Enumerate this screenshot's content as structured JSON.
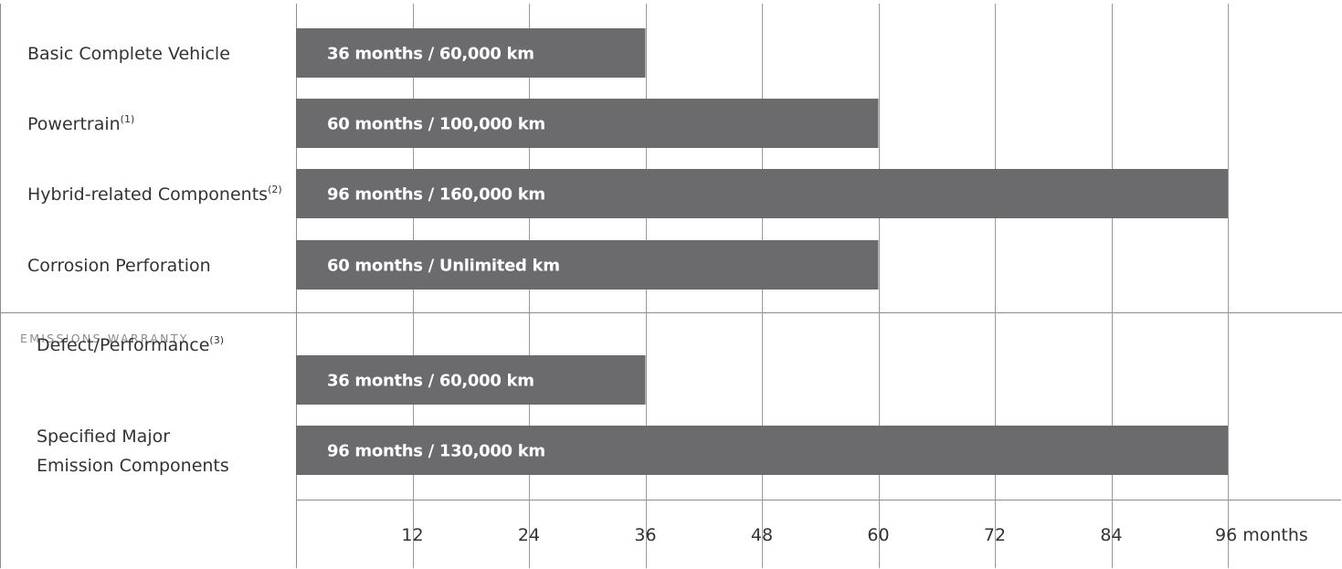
{
  "chart_data": {
    "type": "bar",
    "orientation": "horizontal",
    "x_unit": "months",
    "xlim": [
      0,
      96
    ],
    "x_ticks": [
      12,
      24,
      36,
      48,
      60,
      72,
      84,
      96
    ],
    "x_tick_labels": [
      "12",
      "24",
      "36",
      "48",
      "60",
      "72",
      "84",
      "96 months"
    ],
    "grid": true,
    "groups": [
      {
        "title": "",
        "items": [
          {
            "label": "Basic Complete Vehicle",
            "note": "",
            "months": 36,
            "bar_label": "36 months / 60,000 km"
          },
          {
            "label": "Powertrain",
            "note": "(1)",
            "months": 60,
            "bar_label": "60 months / 100,000 km"
          },
          {
            "label": "Hybrid-related Components",
            "note": "(2)",
            "months": 96,
            "bar_label": "96 months / 160,000 km"
          },
          {
            "label": "Corrosion Perforation",
            "note": "",
            "months": 60,
            "bar_label": "60 months / Unlimited km"
          }
        ]
      },
      {
        "title": "EMISSIONS WARRANTY",
        "items": [
          {
            "label": "Defect/Performance",
            "note": "(3)",
            "months": 36,
            "bar_label": "36 months / 60,000 km"
          },
          {
            "label_lines": [
              "Specified Major",
              "Emission Components"
            ],
            "note": "",
            "months": 96,
            "bar_label": "96 months / 130,000 km"
          }
        ]
      }
    ]
  },
  "colors": {
    "bar": "#6b6b6e",
    "grid": "#9a9a9a",
    "border": "#8c8c8c",
    "bar_text": "#ffffff",
    "label_text": "#333333",
    "section_title": "#8c8c8c"
  }
}
